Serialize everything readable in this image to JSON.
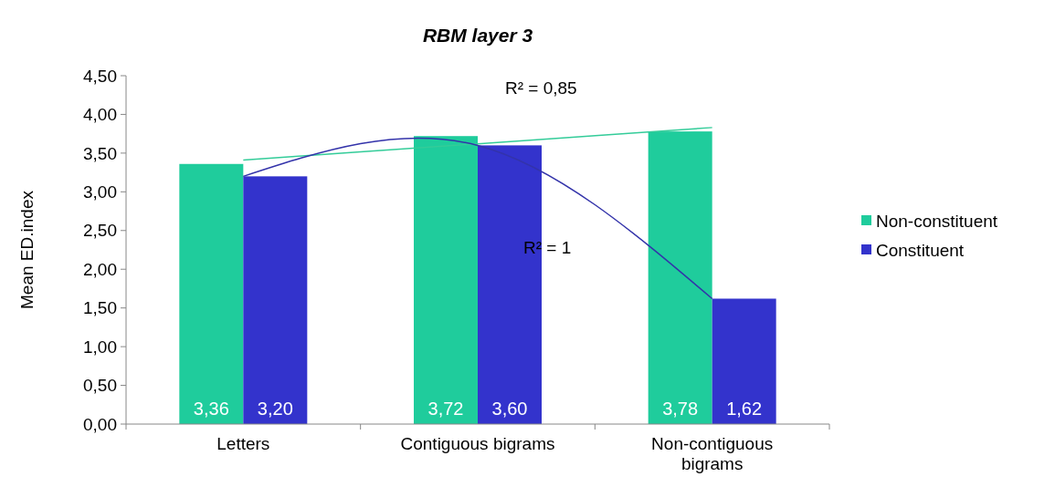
{
  "chart_data": {
    "type": "bar",
    "title": "RBM layer 3",
    "ylabel": "Mean ED.index",
    "categories": [
      "Letters",
      "Contiguous bigrams",
      "Non-contiguous bigrams"
    ],
    "series": [
      {
        "name": "Non-constituent",
        "color": "#1fcc9c",
        "values": [
          3.36,
          3.72,
          3.78
        ],
        "value_labels": [
          "3,36",
          "3,72",
          "3,78"
        ]
      },
      {
        "name": "Constituent",
        "color": "#3333cc",
        "values": [
          3.2,
          3.6,
          1.62
        ],
        "value_labels": [
          "3,20",
          "3,60",
          "1,62"
        ]
      },
      {
        "type": "line",
        "color": "#33cc99",
        "values": [
          3.41,
          3.62,
          3.83
        ]
      },
      {
        "type": "line",
        "color": "#3333aa",
        "values": [
          3.2,
          3.6,
          1.62
        ]
      }
    ],
    "ylim": [
      0,
      4.5
    ],
    "yticks": [
      {
        "value": 0,
        "label": "0,00"
      },
      {
        "value": 0.5,
        "label": "0,50"
      },
      {
        "value": 1,
        "label": "1,00"
      },
      {
        "value": 1.5,
        "label": "1,50"
      },
      {
        "value": 2,
        "label": "2,00"
      },
      {
        "value": 2.5,
        "label": "2,50"
      },
      {
        "value": 3,
        "label": "3,00"
      },
      {
        "value": 3.5,
        "label": "3,50"
      },
      {
        "value": 4,
        "label": "4,00"
      },
      {
        "value": 4.5,
        "label": "4,50"
      }
    ],
    "annotations": [
      "R² = 0,85",
      "R² = 1"
    ],
    "legend": "right",
    "grid": false,
    "marker": "none"
  }
}
